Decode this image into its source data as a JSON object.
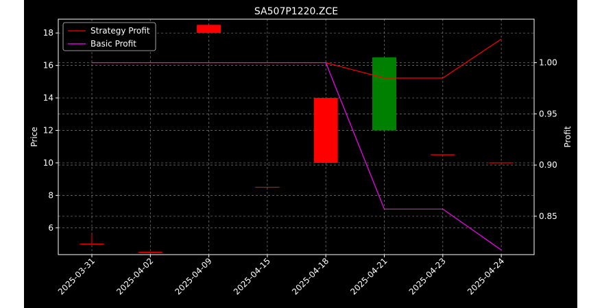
{
  "chart_data": {
    "type": "candlestick+line",
    "title": "SA507P1220.ZCE",
    "xlabel": "",
    "ylabel_left": "Price",
    "ylabel_right": "Profit",
    "categories": [
      "2025-03-31",
      "2025-04-02",
      "2025-04-09",
      "2025-04-15",
      "2025-04-18",
      "2025-04-21",
      "2025-04-23",
      "2025-04-24"
    ],
    "ylim_left": [
      4.35,
      18.85
    ],
    "yticks_left": [
      6,
      8,
      10,
      12,
      14,
      16,
      18
    ],
    "ylim_right": [
      0.8125,
      1.0425
    ],
    "yticks_right": [
      0.85,
      0.9,
      0.95,
      1.0
    ],
    "grid": true,
    "legend_position": "top-left",
    "candles": [
      {
        "date": "2025-03-31",
        "open": 5.0,
        "close": 5.0,
        "high": 5.6,
        "low": 5.0
      },
      {
        "date": "2025-04-02",
        "open": 4.5,
        "close": 4.5,
        "high": 4.5,
        "low": 4.5
      },
      {
        "date": "2025-04-09",
        "open": 18.5,
        "close": 18.0,
        "high": 18.5,
        "low": 18.0
      },
      {
        "date": "2025-04-15",
        "open": 8.5,
        "close": 8.5,
        "high": 8.5,
        "low": 8.5
      },
      {
        "date": "2025-04-18",
        "open": 14.0,
        "close": 10.0,
        "high": 14.0,
        "low": 10.0
      },
      {
        "date": "2025-04-21",
        "open": 12.0,
        "close": 16.5,
        "high": 16.5,
        "low": 12.0
      },
      {
        "date": "2025-04-23",
        "open": 10.5,
        "close": 10.5,
        "high": 10.5,
        "low": 10.5
      },
      {
        "date": "2025-04-24",
        "open": 10.0,
        "close": 10.0,
        "high": 10.0,
        "low": 10.0
      }
    ],
    "series": [
      {
        "name": "Strategy Profit",
        "color": "#ff0000",
        "axis": "right",
        "values": [
          1.0,
          1.0,
          1.0,
          1.0,
          1.0,
          0.985,
          0.985,
          1.023
        ]
      },
      {
        "name": "Basic Profit",
        "color": "#ff00ff",
        "axis": "right",
        "values": [
          1.0,
          1.0,
          1.0,
          1.0,
          1.0,
          0.857,
          0.857,
          0.817
        ]
      }
    ],
    "colors": {
      "up": "#008000",
      "down": "#ff0000",
      "background": "#000000",
      "text": "#ffffff",
      "grid": "#808080"
    }
  }
}
